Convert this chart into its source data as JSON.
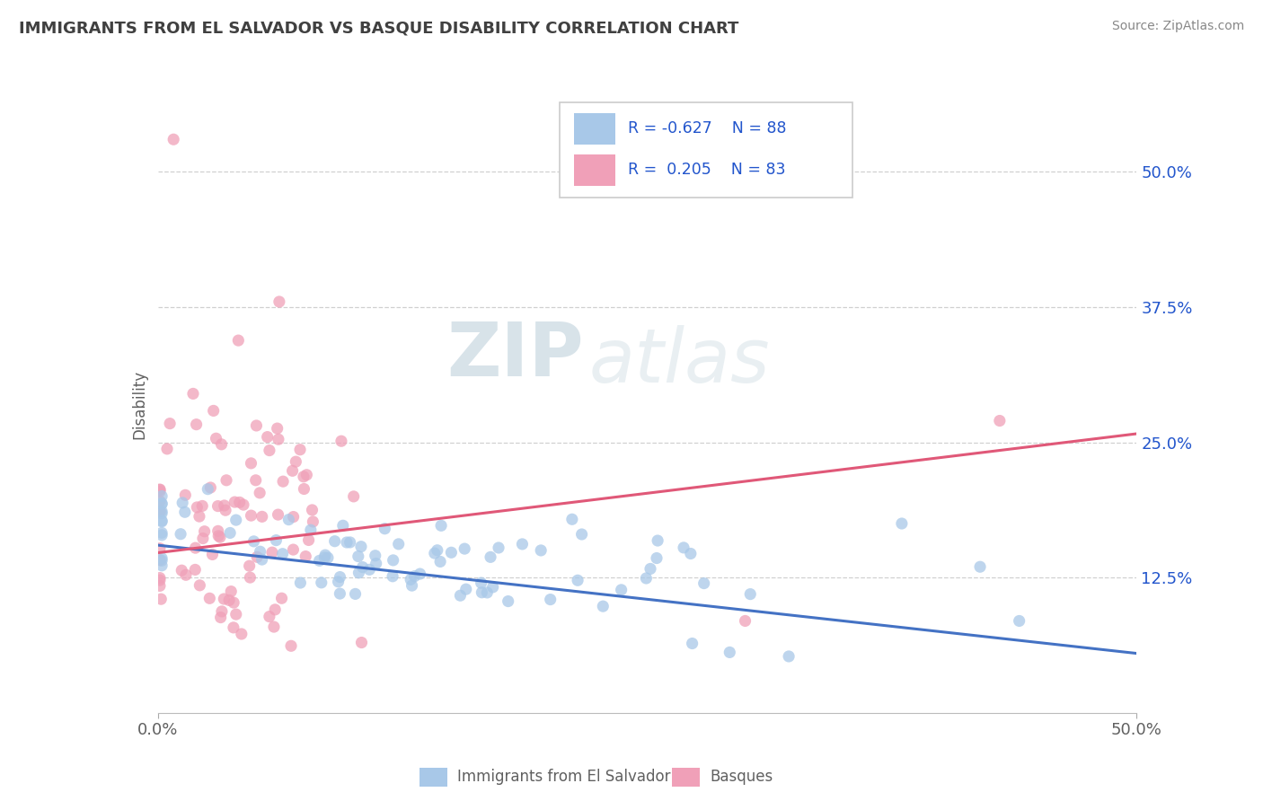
{
  "title": "IMMIGRANTS FROM EL SALVADOR VS BASQUE DISABILITY CORRELATION CHART",
  "source": "Source: ZipAtlas.com",
  "ylabel": "Disability",
  "yticks": [
    "12.5%",
    "25.0%",
    "37.5%",
    "50.0%"
  ],
  "ytick_vals": [
    0.125,
    0.25,
    0.375,
    0.5
  ],
  "xlim": [
    0.0,
    0.5
  ],
  "ylim": [
    0.0,
    0.57
  ],
  "color_blue": "#a8c8e8",
  "color_pink": "#f0a0b8",
  "line_blue": "#4472c4",
  "line_pink": "#e05878",
  "watermark_zip": "ZIP",
  "watermark_atlas": "atlas",
  "background_color": "#ffffff",
  "grid_color": "#d0d0d0",
  "title_color": "#404040",
  "r_color": "#2255cc",
  "tick_color": "#606060",
  "blue_slope": -0.2,
  "blue_intercept": 0.155,
  "pink_slope": 0.22,
  "pink_intercept": 0.148,
  "blue_line_x_start": 0.0,
  "blue_line_x_end": 0.5,
  "pink_line_x_start": 0.0,
  "pink_line_x_end": 0.5,
  "seed": 7,
  "n_blue": 88,
  "n_pink": 83,
  "bottom_legend_blue_label": "Immigrants from El Salvador",
  "bottom_legend_pink_label": "Basques"
}
